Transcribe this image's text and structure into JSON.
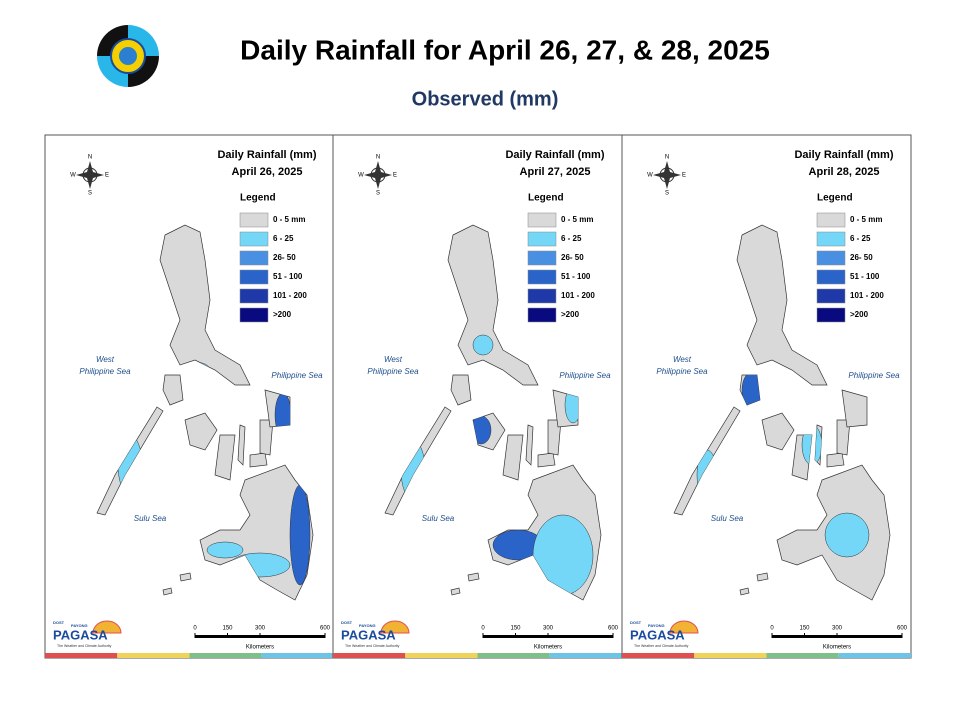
{
  "header": {
    "title": "Daily Rainfall for April 26, 27, & 28, 2025",
    "subtitle": "Observed (mm)"
  },
  "panels": [
    {
      "heading": "Daily Rainfall (mm)",
      "date": "April 26, 2025"
    },
    {
      "heading": "Daily Rainfall (mm)",
      "date": "April 27, 2025"
    },
    {
      "heading": "Daily Rainfall (mm)",
      "date": "April 28, 2025"
    }
  ],
  "legend": {
    "title": "Legend",
    "items": [
      {
        "label": "0 - 5 mm",
        "color": "#d9d9d9"
      },
      {
        "label": "6 - 25",
        "color": "#74d7f7"
      },
      {
        "label": "26- 50",
        "color": "#4a90e2"
      },
      {
        "label": "51 - 100",
        "color": "#2a64c8"
      },
      {
        "label": "101 - 200",
        "color": "#1f3aa8"
      },
      {
        "label": ">200",
        "color": "#0a0a80"
      }
    ]
  },
  "seas": {
    "west": [
      "West",
      "Philippine Sea"
    ],
    "east": "Philippine Sea",
    "south": "Sulu Sea"
  },
  "scale": {
    "ticks": [
      0,
      150,
      300,
      600
    ],
    "unit": "Kilometers"
  },
  "compass": {
    "n": "N",
    "s": "S",
    "e": "E",
    "w": "W"
  },
  "logo": {
    "top": "DOST",
    "sub": "PAYONG",
    "brand": "PAGASA",
    "tagline": "The Weather and Climate Authority"
  }
}
